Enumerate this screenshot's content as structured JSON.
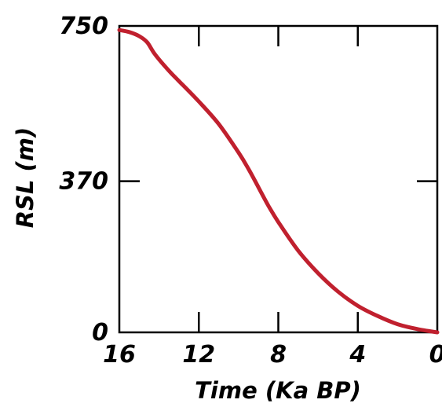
{
  "chart_data": {
    "type": "line",
    "title": "",
    "xlabel": "Time (Ka BP)",
    "ylabel": "RSL (m)",
    "xlim": [
      16,
      0
    ],
    "ylim": [
      0,
      750
    ],
    "x_ticks": [
      16,
      12,
      8,
      4,
      0
    ],
    "y_ticks": [
      0,
      370,
      750
    ],
    "x_tick_labels": [
      "16",
      "12",
      "8",
      "4",
      "0"
    ],
    "y_tick_labels": [
      "0",
      "370",
      "750"
    ],
    "grid": false,
    "legend": "none",
    "series": [
      {
        "color": "#c0202e",
        "x": [
          16,
          15.5,
          15,
          14.6,
          14.2,
          13.5,
          13,
          12,
          11,
          10,
          9.5,
          9,
          8.5,
          8,
          7,
          6,
          5,
          4,
          3,
          2,
          1,
          0
        ],
        "y": [
          740,
          735,
          725,
          710,
          680,
          640,
          615,
          565,
          510,
          440,
          400,
          355,
          310,
          270,
          200,
          145,
          100,
          65,
          40,
          20,
          8,
          0
        ]
      }
    ]
  }
}
